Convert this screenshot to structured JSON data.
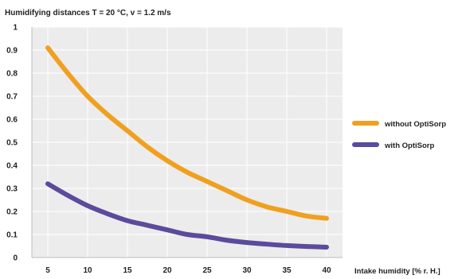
{
  "chart_data": {
    "type": "line",
    "title": "Humidifying distances  T = 20 °C, v = 1.2 m/s",
    "xlabel": "Intake humidity  [% r. H.]",
    "ylabel": "",
    "xlim": [
      3,
      42
    ],
    "ylim": [
      0,
      1
    ],
    "x_ticks": [
      "5",
      "10",
      "15",
      "20",
      "25",
      "30",
      "35",
      "40"
    ],
    "y_ticks": [
      "0",
      "0.1",
      "0.2",
      "0.3",
      "0.4",
      "0.5",
      "0.6",
      "0.7",
      "0.8",
      "0.9",
      "1"
    ],
    "x": [
      5,
      7.5,
      10,
      12.5,
      15,
      17.5,
      20,
      22.5,
      25,
      27.5,
      30,
      32.5,
      35,
      37.5,
      40
    ],
    "series": [
      {
        "name": "without OptiSorp",
        "color": "#f0a020",
        "values": [
          0.91,
          0.8,
          0.7,
          0.62,
          0.55,
          0.48,
          0.42,
          0.37,
          0.33,
          0.29,
          0.25,
          0.22,
          0.2,
          0.18,
          0.17
        ]
      },
      {
        "name": "with OptiSorp",
        "color": "#5c4a9c",
        "values": [
          0.32,
          0.27,
          0.225,
          0.19,
          0.16,
          0.14,
          0.12,
          0.1,
          0.09,
          0.075,
          0.065,
          0.058,
          0.052,
          0.048,
          0.045
        ]
      }
    ],
    "grid": true,
    "legend_position": "right"
  }
}
